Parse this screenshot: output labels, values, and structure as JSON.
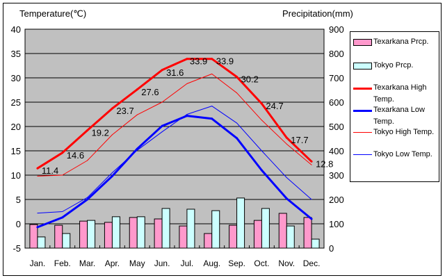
{
  "chart_data": {
    "type": "bar+line",
    "categories": [
      "Jan.",
      "Feb.",
      "Mar.",
      "Apr.",
      "May",
      "Jun.",
      "Jul.",
      "Aug.",
      "Sep.",
      "Oct.",
      "Nov.",
      "Dec."
    ],
    "left_axis": {
      "label": "Temperature(℃)",
      "range": [
        -5,
        40
      ],
      "ticks": [
        40,
        35,
        30,
        25,
        20,
        15,
        10,
        5,
        0,
        -5
      ]
    },
    "right_axis": {
      "label": "Precipitation(mm)",
      "range": [
        0,
        900
      ],
      "ticks": [
        900,
        800,
        700,
        600,
        500,
        400,
        300,
        200,
        100,
        0
      ]
    },
    "grid": true,
    "legend_position": "right",
    "bar_series": [
      {
        "name": "Texarkana Prcp.",
        "color": "#ff99cc",
        "axis": "right",
        "values": [
          97,
          94,
          111,
          106,
          126,
          120,
          91,
          60,
          94,
          114,
          143,
          126
        ]
      },
      {
        "name": "Tokyo Prcp.",
        "color": "#ccffff",
        "axis": "right",
        "values": [
          46,
          60,
          114,
          129,
          129,
          163,
          160,
          154,
          206,
          163,
          91,
          37
        ]
      }
    ],
    "line_series": [
      {
        "name": "Texarkana High Temp.",
        "color": "#ff0000",
        "width": "thick",
        "axis": "left",
        "values": [
          11.4,
          14.6,
          19.2,
          23.7,
          27.6,
          31.6,
          33.9,
          33.9,
          30.2,
          24.7,
          17.7,
          12.8
        ],
        "labels": [
          "11.4",
          "14.6",
          "19.2",
          "23.7",
          "27.6",
          "31.6",
          "33.9",
          "33.9",
          "30.2",
          "24.7",
          "17.7",
          "12.8"
        ]
      },
      {
        "name": "Texarkana Low Temp.",
        "color": "#0000ff",
        "width": "thick",
        "axis": "left",
        "values": [
          -0.7,
          1.3,
          5.0,
          9.8,
          15.4,
          20.1,
          22.2,
          21.6,
          17.6,
          11.0,
          5.2,
          1.0
        ]
      },
      {
        "name": "Tokyo High Temp.",
        "color": "#ff0000",
        "width": "thin",
        "axis": "left",
        "values": [
          9.8,
          10.0,
          13.0,
          18.3,
          22.4,
          25.0,
          28.8,
          30.8,
          26.9,
          21.3,
          16.4,
          12.1
        ]
      },
      {
        "name": "Tokyo Low Temp.",
        "color": "#0000ff",
        "width": "thin",
        "axis": "left",
        "values": [
          2.2,
          2.5,
          5.4,
          10.5,
          15.1,
          18.9,
          22.5,
          24.2,
          20.7,
          15.0,
          9.5,
          5.0
        ]
      }
    ],
    "plot_background": "#c0c0c0"
  },
  "legend": {
    "items": [
      {
        "label": "Texarkana Prcp.",
        "kind": "box",
        "color": "#ff99cc"
      },
      {
        "label": "Tokyo Prcp.",
        "kind": "box",
        "color": "#ccffff"
      },
      {
        "label": "Texarkana High Temp.",
        "kind": "line",
        "color": "#ff0000",
        "thick": true
      },
      {
        "label": "Texarkana Low Temp.",
        "kind": "line",
        "color": "#0000ff",
        "thick": true
      },
      {
        "label": "Tokyo High Temp.",
        "kind": "line",
        "color": "#ff0000",
        "thick": false
      },
      {
        "label": "Tokyo Low Temp.",
        "kind": "line",
        "color": "#0000ff",
        "thick": false
      }
    ]
  }
}
